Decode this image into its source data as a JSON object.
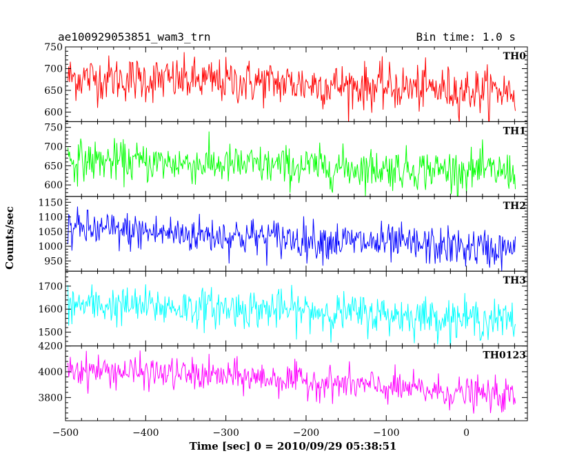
{
  "header": {
    "title": "ae100929053851_wam3_trn",
    "bin_time": "Bin time: 1.0 s"
  },
  "xlabel": "Time [sec] 0 = 2010/09/29 05:38:51",
  "ylabel": "Counts/sec",
  "chart_data": {
    "type": "line",
    "shared_x": {
      "range": [
        -500,
        76
      ],
      "step_sec": 1.0,
      "ticks": [
        -500,
        -400,
        -300,
        -200,
        -100,
        0
      ]
    },
    "panels": [
      {
        "label": "TH0",
        "color": "#ff0000",
        "ylim": [
          578,
          750
        ],
        "yticks": [
          600,
          650,
          700,
          750
        ],
        "trend": [
          [
            -500,
            680
          ],
          [
            -250,
            668
          ],
          [
            0,
            650
          ],
          [
            76,
            648
          ]
        ],
        "noise_sd": 26
      },
      {
        "label": "TH1",
        "color": "#00ff00",
        "ylim": [
          570,
          765
        ],
        "yticks": [
          600,
          650,
          700,
          750
        ],
        "trend": [
          [
            -500,
            665
          ],
          [
            -250,
            650
          ],
          [
            0,
            638
          ],
          [
            76,
            632
          ]
        ],
        "noise_sd": 26
      },
      {
        "label": "TH2",
        "color": "#0000ff",
        "ylim": [
          915,
          1170
        ],
        "yticks": [
          950,
          1000,
          1050,
          1100,
          1150
        ],
        "trend": [
          [
            -500,
            1060
          ],
          [
            -250,
            1030
          ],
          [
            0,
            995
          ],
          [
            76,
            985
          ]
        ],
        "noise_sd": 33
      },
      {
        "label": "TH3",
        "color": "#00ffff",
        "ylim": [
          1440,
          1765
        ],
        "yticks": [
          1500,
          1600,
          1700
        ],
        "trend": [
          [
            -500,
            1620
          ],
          [
            -250,
            1600
          ],
          [
            0,
            1560
          ],
          [
            76,
            1545
          ]
        ],
        "noise_sd": 42
      },
      {
        "label": "TH0123",
        "color": "#ff00ff",
        "ylim": [
          3620,
          4200
        ],
        "yticks": [
          3800,
          4000,
          4200
        ],
        "trend": [
          [
            -500,
            4020
          ],
          [
            -250,
            3950
          ],
          [
            0,
            3830
          ],
          [
            76,
            3800
          ]
        ],
        "noise_sd": 62
      }
    ]
  }
}
